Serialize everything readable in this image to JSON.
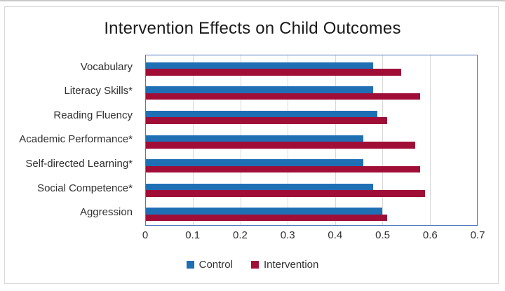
{
  "chart_data": {
    "type": "bar",
    "orientation": "horizontal",
    "title": "Intervention Effects on Child Outcomes",
    "categories": [
      "Vocabulary",
      "Literacy Skills*",
      "Reading Fluency",
      "Academic Performance*",
      "Self-directed Learning*",
      "Social Competence*",
      "Aggression"
    ],
    "series": [
      {
        "name": "Control",
        "color": "#1f6fb5",
        "values": [
          0.48,
          0.48,
          0.49,
          0.46,
          0.46,
          0.48,
          0.5
        ]
      },
      {
        "name": "Intervention",
        "color": "#a00e38",
        "values": [
          0.54,
          0.58,
          0.51,
          0.57,
          0.58,
          0.59,
          0.51
        ]
      }
    ],
    "xlim": [
      0,
      0.7
    ],
    "x_ticks": [
      "0",
      "0.1",
      "0.2",
      "0.3",
      "0.4",
      "0.5",
      "0.6",
      "0.7"
    ],
    "grid": "vertical-gridlines-on",
    "legend_position": "bottom-center"
  },
  "colors": {
    "plot_border": "#4e79bd",
    "gridline": "#d9d9d9",
    "outer_frame": "#d9d9d9",
    "title_text": "#1a1a1a",
    "label_text": "#303030"
  }
}
